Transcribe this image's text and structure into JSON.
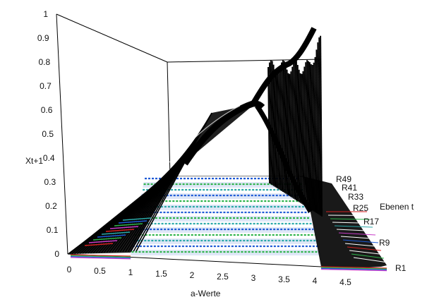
{
  "chart_data": {
    "type": "line",
    "render_style": "3d-surface",
    "xlabel": "a-Werte",
    "ylabel": "Xt+1",
    "zlabel": "Ebenen t",
    "x_ticks": [
      "0",
      "0.5",
      "1",
      "1.5",
      "2",
      "2.5",
      "3",
      "3.5",
      "4",
      "4.5"
    ],
    "y_ticks": [
      "0",
      "0.1",
      "0.2",
      "0.3",
      "0.4",
      "0.5",
      "0.6",
      "0.7",
      "0.8",
      "0.9",
      "1"
    ],
    "z_ticks": [
      "R1",
      "R9",
      "R17",
      "R25",
      "R33",
      "R41",
      "R49"
    ],
    "xlim": [
      0,
      4.9
    ],
    "ylim": [
      0,
      1
    ],
    "grid": false,
    "series_description_values": {
      "x": [
        0,
        0.5,
        1,
        1.5,
        2,
        2.5,
        2.9,
        3.0,
        3.2,
        3.4,
        3.5,
        3.6,
        3.7,
        3.8,
        3.9,
        4.0
      ],
      "y_upper": [
        0,
        0,
        0,
        0.33,
        0.5,
        0.6,
        0.655,
        0.66,
        0.8,
        0.84,
        0.87,
        0.9,
        0.92,
        0.94,
        0.95,
        1.0
      ],
      "y_lower": [
        0,
        0,
        0,
        0.33,
        0.5,
        0.6,
        0.655,
        0.66,
        0.51,
        0.45,
        0.38,
        0.3,
        0.22,
        0.15,
        0.1,
        0.0
      ]
    },
    "colors": {
      "ink": "#000000",
      "band_blue": "#1e5ad6",
      "band_green": "#2db34a",
      "band_red": "#d42020",
      "band_magenta": "#c83cc8",
      "band_teal": "#2aa8a8"
    }
  }
}
